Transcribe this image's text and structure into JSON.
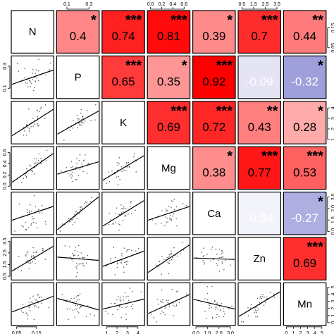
{
  "chart_data": {
    "type": "scatter",
    "title": "",
    "variables": [
      "N",
      "P",
      "K",
      "Mg",
      "Ca",
      "Zn",
      "Mn"
    ],
    "correlations": [
      {
        "row": 0,
        "col": 1,
        "r": 0.4,
        "label": "0.4",
        "stars": "*"
      },
      {
        "row": 0,
        "col": 2,
        "r": 0.74,
        "label": "0.74",
        "stars": "***"
      },
      {
        "row": 0,
        "col": 3,
        "r": 0.81,
        "label": "0.81",
        "stars": "***"
      },
      {
        "row": 0,
        "col": 4,
        "r": 0.39,
        "label": "0.39",
        "stars": "*"
      },
      {
        "row": 0,
        "col": 5,
        "r": 0.7,
        "label": "0.7",
        "stars": "***"
      },
      {
        "row": 0,
        "col": 6,
        "r": 0.44,
        "label": "0.44",
        "stars": "**"
      },
      {
        "row": 1,
        "col": 2,
        "r": 0.65,
        "label": "0.65",
        "stars": "***"
      },
      {
        "row": 1,
        "col": 3,
        "r": 0.35,
        "label": "0.35",
        "stars": "*"
      },
      {
        "row": 1,
        "col": 4,
        "r": 0.92,
        "label": "0.92",
        "stars": "***"
      },
      {
        "row": 1,
        "col": 5,
        "r": -0.09,
        "label": "-0.09",
        "stars": ""
      },
      {
        "row": 1,
        "col": 6,
        "r": -0.32,
        "label": "-0.32",
        "stars": "*"
      },
      {
        "row": 2,
        "col": 3,
        "r": 0.69,
        "label": "0.69",
        "stars": "***"
      },
      {
        "row": 2,
        "col": 4,
        "r": 0.72,
        "label": "0.72",
        "stars": "***"
      },
      {
        "row": 2,
        "col": 5,
        "r": 0.43,
        "label": "0.43",
        "stars": "**"
      },
      {
        "row": 2,
        "col": 6,
        "r": 0.28,
        "label": "0.28",
        "stars": "*"
      },
      {
        "row": 3,
        "col": 4,
        "r": 0.38,
        "label": "0.38",
        "stars": "*"
      },
      {
        "row": 3,
        "col": 5,
        "r": 0.77,
        "label": "0.77",
        "stars": "***"
      },
      {
        "row": 3,
        "col": 6,
        "r": 0.53,
        "label": "0.53",
        "stars": "***"
      },
      {
        "row": 4,
        "col": 5,
        "r": -0.04,
        "label": "-0.04",
        "stars": ""
      },
      {
        "row": 4,
        "col": 6,
        "r": -0.27,
        "label": "-0.27",
        "stars": "*"
      },
      {
        "row": 5,
        "col": 6,
        "r": 0.69,
        "label": "0.69",
        "stars": "***"
      }
    ],
    "axes": {
      "top": [
        {
          "col": 1,
          "ticks": [
            {
              "v": 0.1,
              "label": "0.1"
            },
            {
              "v": 0.3,
              "label": "0.3"
            }
          ],
          "range": [
            0.02,
            0.38
          ]
        },
        {
          "col": 3,
          "ticks": [
            {
              "v": 0.0,
              "label": "0.0"
            },
            {
              "v": 0.2,
              "label": "0.2"
            },
            {
              "v": 0.4,
              "label": "0.4"
            },
            {
              "v": 0.6,
              "label": "0.6"
            }
          ],
          "range": [
            -0.03,
            0.68
          ]
        },
        {
          "col": 5,
          "ticks": [
            {
              "v": 0.5,
              "label": "0.5"
            },
            {
              "v": 1.5,
              "label": "1.5"
            },
            {
              "v": 2.5,
              "label": "2.5"
            },
            {
              "v": 3.5,
              "label": "3.5"
            }
          ],
          "range": [
            0.3,
            3.7
          ]
        }
      ],
      "bottom": [
        {
          "col": 0,
          "ticks": [
            {
              "v": 0.05,
              "label": "0.05"
            },
            {
              "v": 0.15,
              "label": "0.15"
            }
          ],
          "range": [
            0.03,
            0.23
          ]
        },
        {
          "col": 2,
          "ticks": [
            {
              "v": 1,
              "label": "1"
            },
            {
              "v": 2,
              "label": "2"
            },
            {
              "v": 3,
              "label": "3"
            },
            {
              "v": 4,
              "label": "4"
            }
          ],
          "range": [
            0.7,
            4.5
          ]
        },
        {
          "col": 4,
          "ticks": [
            {
              "v": 0.0,
              "label": "0.0"
            },
            {
              "v": 1.0,
              "label": "1.0"
            },
            {
              "v": 2.0,
              "label": "2.0"
            },
            {
              "v": 3.0,
              "label": "3.0"
            }
          ],
          "range": [
            -0.15,
            3.3
          ]
        },
        {
          "col": 6,
          "ticks": [
            {
              "v": 0,
              "label": "0"
            },
            {
              "v": 1,
              "label": "1"
            },
            {
              "v": 2,
              "label": "2"
            },
            {
              "v": 3,
              "label": "3"
            },
            {
              "v": 4,
              "label": "4"
            },
            {
              "v": 5,
              "label": "5"
            }
          ],
          "range": [
            -0.2,
            5.4
          ]
        }
      ],
      "left": [
        {
          "row": 1,
          "ticks": [
            {
              "v": 0.1,
              "label": "0.1"
            },
            {
              "v": 0.3,
              "label": "0.3"
            }
          ],
          "range": [
            0.02,
            0.38
          ]
        },
        {
          "row": 3,
          "ticks": [
            {
              "v": 0.0,
              "label": "0.0"
            },
            {
              "v": 0.2,
              "label": "0.2"
            },
            {
              "v": 0.4,
              "label": "0.4"
            },
            {
              "v": 0.6,
              "label": "0.6"
            }
          ],
          "range": [
            -0.03,
            0.68
          ]
        },
        {
          "row": 5,
          "ticks": [
            {
              "v": 0.5,
              "label": "0.5"
            },
            {
              "v": 1.5,
              "label": "1.5"
            },
            {
              "v": 2.5,
              "label": "2.5"
            },
            {
              "v": 3.5,
              "label": "3.5"
            }
          ],
          "range": [
            0.3,
            3.7
          ]
        }
      ],
      "right": [
        {
          "row": 0,
          "ticks": [
            {
              "v": 0.05,
              "label": "0.05"
            },
            {
              "v": 0.15,
              "label": "0.15"
            }
          ],
          "range": [
            0.03,
            0.23
          ]
        },
        {
          "row": 2,
          "ticks": [
            {
              "v": 1,
              "label": "1"
            },
            {
              "v": 2,
              "label": "2"
            },
            {
              "v": 3,
              "label": "3"
            },
            {
              "v": 4,
              "label": "4"
            }
          ],
          "range": [
            0.7,
            4.5
          ]
        },
        {
          "row": 4,
          "ticks": [
            {
              "v": 0.0,
              "label": "0.0"
            },
            {
              "v": 1.0,
              "label": "1.0"
            },
            {
              "v": 2.0,
              "label": "2.0"
            },
            {
              "v": 3.0,
              "label": "3.0"
            }
          ],
          "range": [
            -0.15,
            3.3
          ]
        },
        {
          "row": 6,
          "ticks": [
            {
              "v": 0,
              "label": "0"
            },
            {
              "v": 1,
              "label": "1"
            },
            {
              "v": 2,
              "label": "2"
            },
            {
              "v": 3,
              "label": "3"
            },
            {
              "v": 4,
              "label": "4"
            },
            {
              "v": 5,
              "label": "5"
            }
          ],
          "range": [
            -0.2,
            5.4
          ]
        }
      ]
    },
    "colors": {
      "positive": "#ff0000",
      "negative": "#0000a0",
      "neutral": "#ffffff",
      "light_text": "#ffffff",
      "dark_text": "#000000",
      "points": "#555555",
      "fit_line": "#000000"
    },
    "grid": false,
    "legend": "none"
  }
}
